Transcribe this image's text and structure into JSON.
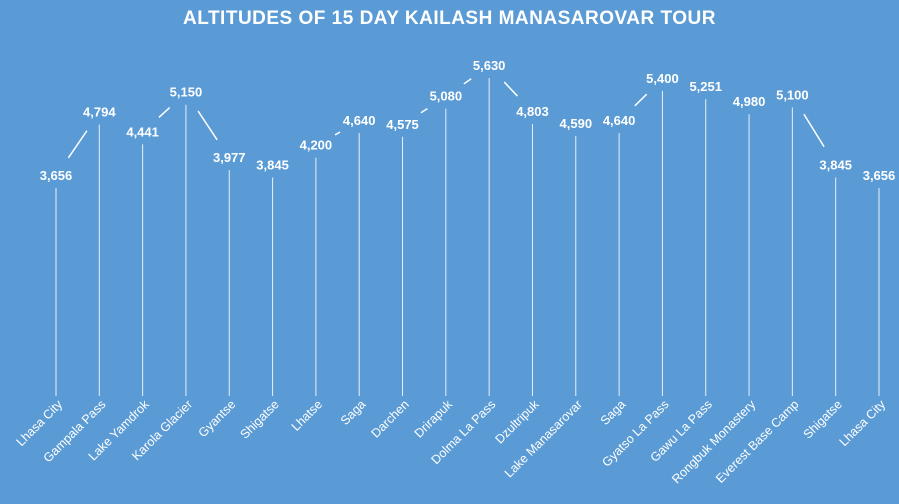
{
  "chart_data": {
    "type": "line",
    "title": "ALTITUDES OF 15 DAY KAILASH MANASAROVAR TOUR",
    "xlabel": "",
    "ylabel": "",
    "grid": false,
    "legend": "none",
    "categories": [
      "Lhasa City",
      "Gampala Pass",
      "Lake Yamdrok",
      "Karola Glacier",
      "Gyantse",
      "Shigatse",
      "Lhatse",
      "Saga",
      "Darchen",
      "Drirapuk",
      "Dolma La Pass",
      "Dzultripuk",
      "Lake Manasarovar",
      "Saga",
      "Gyatso La Pass",
      "Gawu La Pass",
      "Rongbuk Monastery",
      "Everest Base Camp",
      "Shigatse",
      "Lhasa City"
    ],
    "values": [
      3656,
      4794,
      4441,
      5150,
      3977,
      3845,
      4200,
      4640,
      4575,
      5080,
      5630,
      4803,
      4590,
      4640,
      5400,
      5251,
      4980,
      5100,
      3845,
      3656
    ],
    "value_labels": [
      "3,656",
      "4,794",
      "4,441",
      "5,150",
      "3,977",
      "3,845",
      "4,200",
      "4,640",
      "4,575",
      "5,080",
      "5,630",
      "4,803",
      "4,590",
      "4,640",
      "5,400",
      "5,251",
      "4,980",
      "5,100",
      "3,845",
      "3,656"
    ],
    "colors": {
      "background": "#5b9bd5",
      "text": "#ffffff",
      "lines": "#ffffff"
    }
  }
}
